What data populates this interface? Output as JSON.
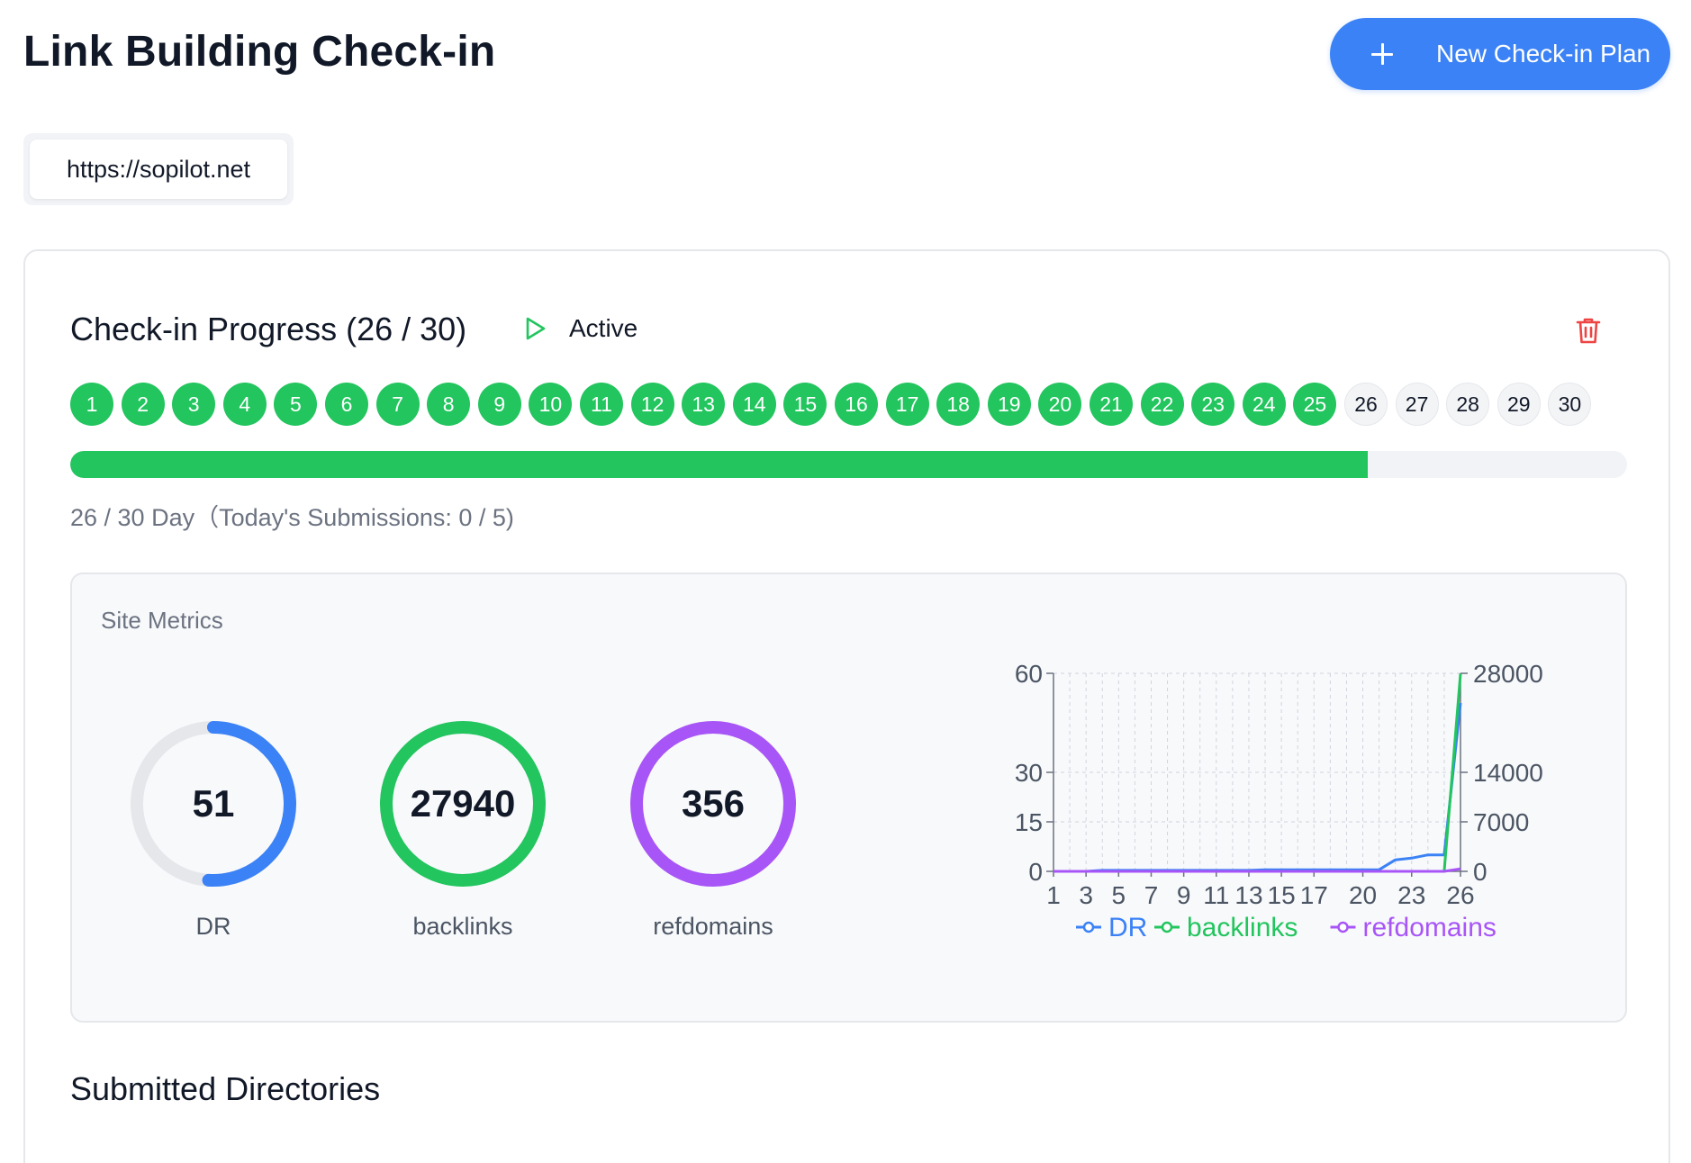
{
  "header": {
    "title": "Link Building Check-in",
    "new_plan_label": "New Check-in Plan"
  },
  "site": {
    "url": "https://sopilot.net"
  },
  "progress": {
    "title": "Check-in Progress (26 / 30)",
    "status": "Active",
    "completed_days": 25,
    "total_days": 30,
    "days": [
      "1",
      "2",
      "3",
      "4",
      "5",
      "6",
      "7",
      "8",
      "9",
      "10",
      "11",
      "12",
      "13",
      "14",
      "15",
      "16",
      "17",
      "18",
      "19",
      "20",
      "21",
      "22",
      "23",
      "24",
      "25",
      "26",
      "27",
      "28",
      "29",
      "30"
    ],
    "fill_fraction": 0.8333,
    "summary": "26 / 30 Day（Today's Submissions: 0 / 5)"
  },
  "metrics": {
    "label": "Site Metrics",
    "dr": {
      "value": "51",
      "label": "DR",
      "fraction": 0.51,
      "color": "#3b82f6"
    },
    "backlinks": {
      "value": "27940",
      "label": "backlinks",
      "fraction": 1.0,
      "color": "#22c55e"
    },
    "refdomains": {
      "value": "356",
      "label": "refdomains",
      "fraction": 1.0,
      "color": "#a855f7"
    }
  },
  "chart_data": {
    "type": "line",
    "x": [
      1,
      2,
      3,
      4,
      5,
      6,
      7,
      8,
      9,
      10,
      11,
      12,
      13,
      14,
      15,
      16,
      17,
      18,
      19,
      20,
      21,
      22,
      23,
      24,
      25,
      26
    ],
    "x_ticks": [
      "1",
      "3",
      "5",
      "7",
      "9",
      "11",
      "13",
      "15",
      "17",
      "20",
      "23",
      "26"
    ],
    "y_left_ticks": [
      "0",
      "15",
      "30",
      "60"
    ],
    "y_right_ticks": [
      "0",
      "7000",
      "14000",
      "28000"
    ],
    "ylim_left": [
      0,
      60
    ],
    "ylim_right": [
      0,
      28000
    ],
    "grid": true,
    "legend_position": "bottom",
    "series": [
      {
        "name": "DR",
        "axis": "left",
        "color": "#3b82f6",
        "values": [
          0,
          0,
          0,
          0.3,
          0.3,
          0.3,
          0.3,
          0.3,
          0.3,
          0.3,
          0.3,
          0.3,
          0.3,
          0.5,
          0.5,
          0.5,
          0.5,
          0.5,
          0.5,
          0.5,
          0.5,
          3.5,
          4,
          5,
          5,
          51
        ]
      },
      {
        "name": "backlinks",
        "axis": "right",
        "color": "#22c55e",
        "values": [
          0,
          0,
          0,
          0,
          0,
          0,
          0,
          0,
          0,
          0,
          0,
          0,
          0,
          0,
          0,
          0,
          0,
          0,
          0,
          0,
          0,
          0,
          0,
          0,
          0,
          27940
        ]
      },
      {
        "name": "refdomains",
        "axis": "right",
        "color": "#a855f7",
        "values": [
          0,
          0,
          0,
          0,
          0,
          0,
          0,
          0,
          0,
          0,
          0,
          0,
          0,
          0,
          0,
          0,
          0,
          0,
          0,
          0,
          0,
          0,
          0,
          0,
          0,
          356
        ]
      }
    ]
  },
  "section": {
    "title": "Submitted Directories"
  }
}
